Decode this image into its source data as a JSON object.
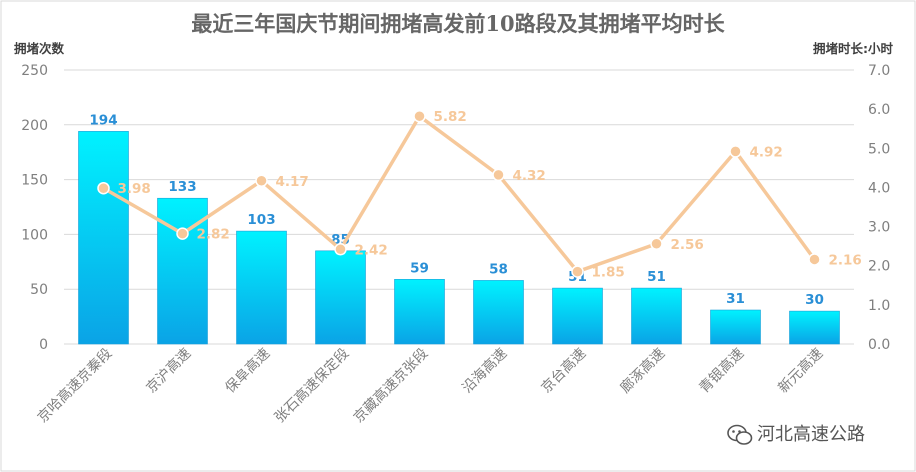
{
  "chart_data": {
    "type": "bar",
    "title": "最近三年国庆节期间拥堵高发前10路段及其拥堵平均时长",
    "ylabel": "拥堵次数",
    "y2label": "拥堵时长:小时",
    "ylim": [
      0,
      250
    ],
    "y2lim": [
      0,
      7
    ],
    "yticks": [
      "0",
      "50",
      "100",
      "150",
      "200",
      "250"
    ],
    "y2ticks": [
      "0.0",
      "1.0",
      "2.0",
      "3.0",
      "4.0",
      "5.0",
      "6.0",
      "7.0"
    ],
    "grid": true,
    "categories": [
      "京哈高速京秦段",
      "京沪高速",
      "保阜高速",
      "张石高速保定段",
      "京藏高速京张段",
      "沿海高速",
      "京台高速",
      "廊涿高速",
      "青银高速",
      "新元高速"
    ],
    "series": [
      {
        "type": "bar",
        "axis": "left",
        "values": [
          194,
          133,
          103,
          85,
          59,
          58,
          51,
          51,
          31,
          30
        ],
        "color": "#19b8ef"
      },
      {
        "type": "line",
        "axis": "right",
        "values": [
          3.98,
          2.82,
          4.17,
          2.42,
          5.82,
          4.32,
          1.85,
          2.56,
          4.92,
          2.16
        ],
        "color": "#f6c89a"
      }
    ]
  },
  "watermark": {
    "text": "河北高速公路",
    "icon": "wechat-icon"
  }
}
